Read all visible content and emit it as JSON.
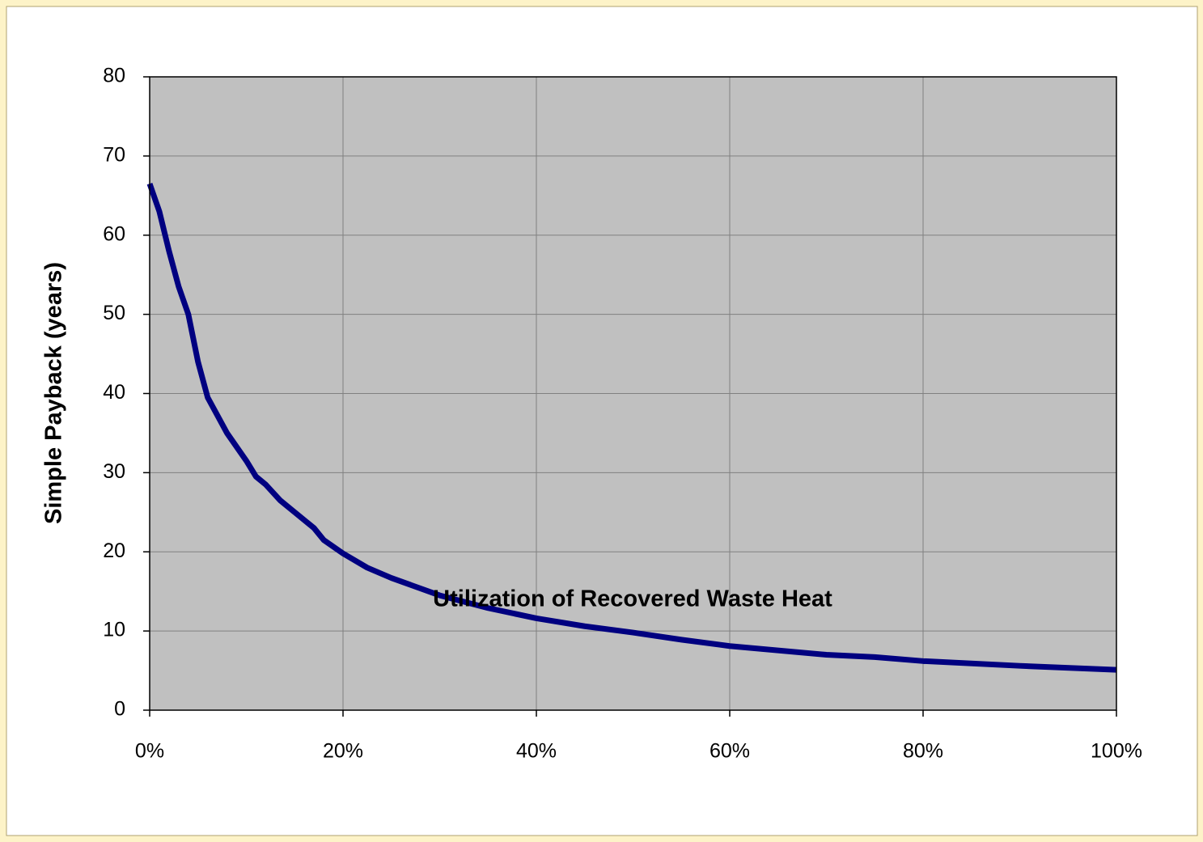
{
  "chart_data": {
    "type": "line",
    "xlabel": "Utilization of Recovered Waste Heat",
    "ylabel": "Simple Payback (years)",
    "x": [
      0,
      1,
      2,
      3,
      4,
      4.5,
      5,
      6,
      8,
      10,
      11,
      12,
      13.5,
      15,
      17,
      18,
      20,
      22.5,
      25,
      30,
      35,
      40,
      45,
      50,
      55,
      60,
      70,
      75,
      80,
      90,
      100
    ],
    "series": [
      {
        "name": "Simple Payback",
        "color": "#000080",
        "values": [
          66.5,
          63,
          58,
          53.5,
          50,
          47,
          44,
          39.5,
          35,
          31.5,
          29.5,
          28.5,
          26.5,
          25,
          23,
          21.5,
          19.8,
          18,
          16.7,
          14.5,
          12.9,
          11.6,
          10.6,
          9.8,
          8.9,
          8.1,
          7,
          6.7,
          6.2,
          5.6,
          5.1
        ]
      }
    ],
    "xlim": [
      0,
      100
    ],
    "xticks": [
      {
        "value": 0,
        "label": "0%"
      },
      {
        "value": 20,
        "label": "20%"
      },
      {
        "value": 40,
        "label": "40%"
      },
      {
        "value": 60,
        "label": "60%"
      },
      {
        "value": 80,
        "label": "80%"
      },
      {
        "value": 100,
        "label": "100%"
      }
    ],
    "ylim": [
      0,
      80
    ],
    "yticks": [
      0,
      10,
      20,
      30,
      40,
      50,
      60,
      70,
      80
    ],
    "grid": true
  }
}
